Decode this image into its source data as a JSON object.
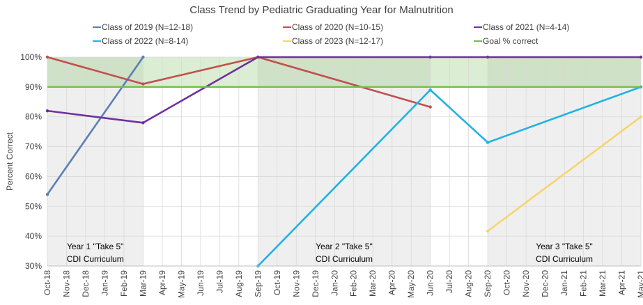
{
  "chart_data": {
    "type": "line",
    "title": "Class Trend by Pediatric Graduating Year for Malnutrition",
    "ylabel": "Percent Correct",
    "xlabel": "",
    "ylim": [
      30,
      100
    ],
    "yticks": [
      "30%",
      "40%",
      "50%",
      "60%",
      "70%",
      "80%",
      "90%",
      "100%"
    ],
    "categories": [
      "Oct-18",
      "Nov-18",
      "Dec-18",
      "Jan-19",
      "Feb-19",
      "Mar-19",
      "Apr-19",
      "May-19",
      "Jun-19",
      "Jul-19",
      "Aug-19",
      "Sep-19",
      "Oct-19",
      "Nov-19",
      "Dec-19",
      "Jan-20",
      "Feb-20",
      "Mar-20",
      "Apr-20",
      "May-20",
      "Jun-20",
      "Jul-20",
      "Aug-20",
      "Sep-20",
      "Oct-20",
      "Nov-20",
      "Dec-20",
      "Jan-21",
      "Feb-21",
      "Mar-21",
      "Apr-21",
      "May-21"
    ],
    "series": [
      {
        "name": "Class of 2019 (N=12-18)",
        "color": "#5b7fb5",
        "points": [
          {
            "x": "Oct-18",
            "y": 54
          },
          {
            "x": "Mar-19",
            "y": 100
          }
        ]
      },
      {
        "name": "Class of 2020 (N=10-15)",
        "color": "#c0504d",
        "points": [
          {
            "x": "Oct-18",
            "y": 100
          },
          {
            "x": "Mar-19",
            "y": 91
          },
          {
            "x": "Sep-19",
            "y": 100
          },
          {
            "x": "Jun-20",
            "y": 83.3
          }
        ]
      },
      {
        "name": "Class of 2021 (N=4-14)",
        "color": "#7030a0",
        "points": [
          {
            "x": "Oct-18",
            "y": 82
          },
          {
            "x": "Mar-19",
            "y": 78
          },
          {
            "x": "Sep-19",
            "y": 100
          },
          {
            "x": "Jun-20",
            "y": 100
          },
          {
            "x": "Sep-20",
            "y": 100
          },
          {
            "x": "May-21",
            "y": 100
          }
        ]
      },
      {
        "name": "Class of 2022 (N=8-14)",
        "color": "#1fb1e6",
        "points": [
          {
            "x": "Sep-19",
            "y": 30
          },
          {
            "x": "Jun-20",
            "y": 89
          },
          {
            "x": "Sep-20",
            "y": 71.4
          },
          {
            "x": "May-21",
            "y": 90
          }
        ]
      },
      {
        "name": "Class of 2023 (N=12-17)",
        "color": "#f6d56a",
        "points": [
          {
            "x": "Sep-20",
            "y": 41.7
          },
          {
            "x": "May-21",
            "y": 80
          }
        ]
      },
      {
        "name": "Goal % correct",
        "color": "#70bf44",
        "value": 90
      }
    ],
    "goal_band": [
      90,
      100
    ],
    "grid": true,
    "legend_position": "top",
    "annotations": [
      {
        "line1": "Year 1 \"Take 5\"",
        "line2": "CDI Curriculum",
        "from": "Oct-18",
        "to": "Mar-19"
      },
      {
        "line1": "Year 2 \"Take 5\"",
        "line2": "CDI Curriculum",
        "from": "Sep-19",
        "to": "Jun-20"
      },
      {
        "line1": "Year 3 \"Take 5\"",
        "line2": "CDI Curriculum",
        "from": "Sep-20",
        "to": "May-21"
      }
    ]
  }
}
